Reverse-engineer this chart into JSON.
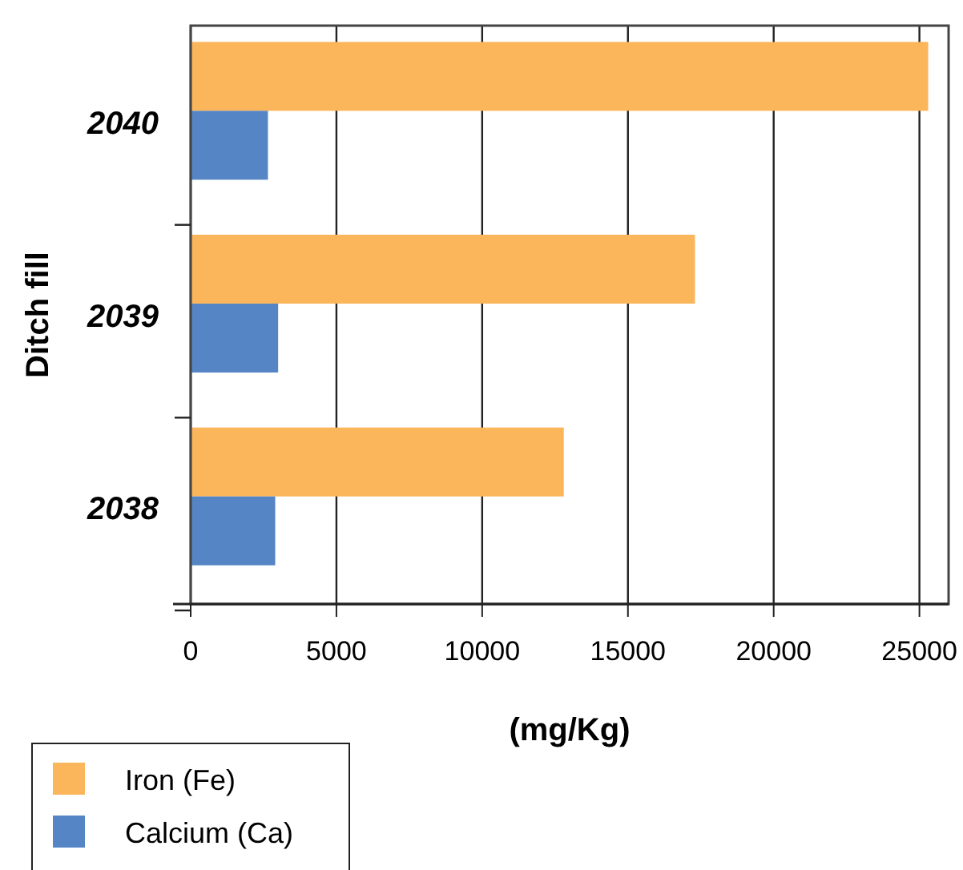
{
  "chart_data": {
    "type": "bar",
    "orientation": "horizontal",
    "ylabel": "Ditch fill",
    "xlabel": "(mg/Kg)",
    "categories": [
      "2040",
      "2039",
      "2038"
    ],
    "series": [
      {
        "name": "Iron (Fe)",
        "color": "#fbb55a",
        "values": [
          25300,
          17300,
          12800
        ]
      },
      {
        "name": "Calcium (Ca)",
        "color": "#5585c5",
        "values": [
          2650,
          3000,
          2900
        ]
      }
    ],
    "xlim": [
      0,
      26000
    ],
    "xticks": [
      0,
      5000,
      10000,
      15000,
      20000,
      25000
    ],
    "grid": "x",
    "legend": "bottom left"
  }
}
